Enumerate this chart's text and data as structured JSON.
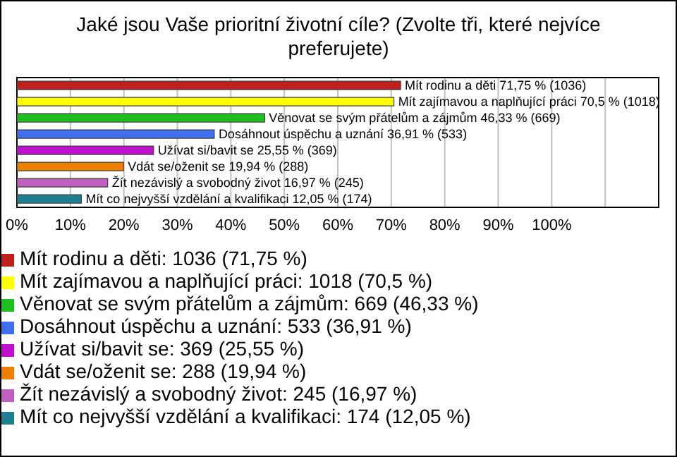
{
  "chart_data": {
    "type": "bar",
    "orientation": "horizontal",
    "stacked": true,
    "title": "Jaké jsou Vaše prioritní životní cíle? (Zvolte tři, které nejvíce preferujete)",
    "categories": [
      null,
      null,
      null,
      null,
      null,
      null,
      null,
      null
    ],
    "series": [
      {
        "name": "Mít rodinu a děti: 1036 (71,75 %)",
        "color": "#c0201c",
        "values": [
          71.75,
          null,
          null,
          null,
          null,
          null,
          null,
          null
        ],
        "value_labels": [
          "Mít rodinu a děti 71,75 % (1036)",
          null,
          null,
          null,
          null,
          null,
          null,
          null
        ]
      },
      {
        "name": "Mít zajímavou a naplňující práci: 1018 (70,5 %)",
        "color": "#ffff00",
        "values": [
          null,
          70.5,
          null,
          null,
          null,
          null,
          null,
          null
        ],
        "value_labels": [
          null,
          "Mít zajímavou a naplňující práci 70,5 % (1018)",
          null,
          null,
          null,
          null,
          null,
          null
        ]
      },
      {
        "name": "Věnovat se svým přátelům a zájmům: 669 (46,33 %)",
        "color": "#1fbf1f",
        "values": [
          null,
          null,
          46.33,
          null,
          null,
          null,
          null,
          null
        ],
        "value_labels": [
          null,
          null,
          "Věnovat se svým přátelům a zájmům 46,33 % (669)",
          null,
          null,
          null,
          null,
          null
        ]
      },
      {
        "name": "Dosáhnout úspěchu a uznání: 533 (36,91 %)",
        "color": "#3f6fef",
        "values": [
          null,
          null,
          null,
          36.91,
          null,
          null,
          null,
          null
        ],
        "value_labels": [
          null,
          null,
          null,
          "Dosáhnout úspěchu a uznání 36,91 % (533)",
          null,
          null,
          null,
          null
        ]
      },
      {
        "name": "Užívat si/bavit se: 369 (25,55 %)",
        "color": "#bf10cf",
        "values": [
          null,
          null,
          null,
          null,
          25.55,
          null,
          null,
          null
        ],
        "value_labels": [
          null,
          null,
          null,
          null,
          "Užívat si/bavit se 25,55 % (369)",
          null,
          null,
          null
        ]
      },
      {
        "name": "Vdát se/oženit se: 288 (19,94 %)",
        "color": "#ef7f00",
        "values": [
          null,
          null,
          null,
          null,
          null,
          19.94,
          null,
          null
        ],
        "value_labels": [
          null,
          null,
          null,
          null,
          null,
          "Vdát se/oženit se 19,94 % (288)",
          null,
          null
        ]
      },
      {
        "name": "Žít nezávislý a svobodný život: 245 (16,97 %)",
        "color": "#bf5fbf",
        "values": [
          null,
          null,
          null,
          null,
          null,
          null,
          16.97,
          null
        ],
        "value_labels": [
          null,
          null,
          null,
          null,
          null,
          null,
          "Žít nezávislý a svobodný život 16,97 % (245)",
          null
        ]
      },
      {
        "name": "Mít co nejvyšší vzdělání a kvalifikaci: 174 (12,05 %)",
        "color": "#1f7f8f",
        "values": [
          null,
          null,
          null,
          null,
          null,
          null,
          null,
          12.05
        ],
        "value_labels": [
          null,
          null,
          null,
          null,
          null,
          null,
          null,
          "Mít co nejvyšší vzdělání a kvalifikaci 12,05 % (174)"
        ]
      }
    ],
    "xlim": [
      0,
      120
    ],
    "xticks": [
      {
        "value": 0,
        "label": "0%"
      },
      {
        "value": 10,
        "label": "10%"
      },
      {
        "value": 20,
        "label": "20%"
      },
      {
        "value": 30,
        "label": "30%"
      },
      {
        "value": 40,
        "label": "40%"
      },
      {
        "value": 50,
        "label": "50%"
      },
      {
        "value": 60,
        "label": "60%"
      },
      {
        "value": 70,
        "label": "70%"
      },
      {
        "value": 80,
        "label": "80%"
      },
      {
        "value": 90,
        "label": "90%"
      },
      {
        "value": 100,
        "label": "100%"
      },
      {
        "value": 110,
        "label": null
      }
    ],
    "grid": "x",
    "legend": "bottom",
    "tick_labels": "x"
  }
}
